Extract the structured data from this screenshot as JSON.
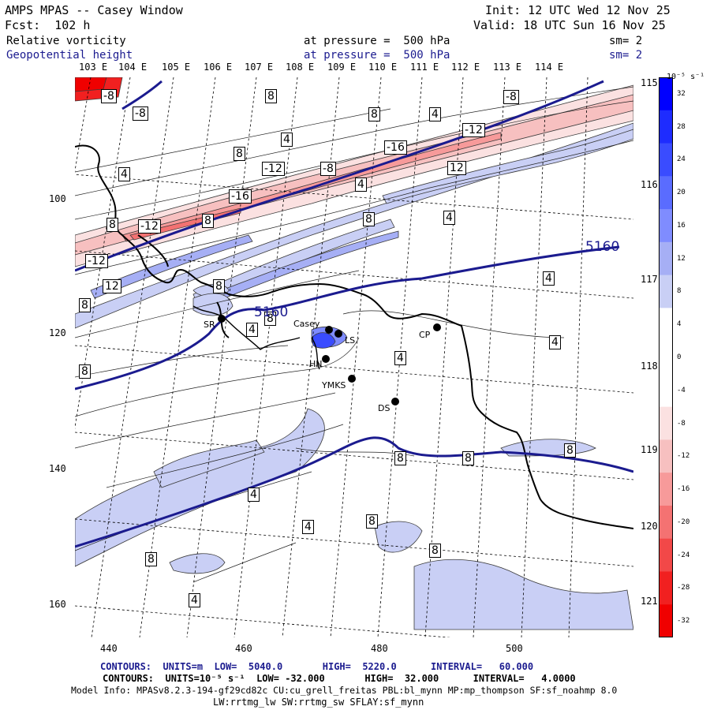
{
  "header": {
    "title": "AMPS MPAS -- Casey Window",
    "fcst": "Fcst:  102 h",
    "init": "Init: 12 UTC Wed 12 Nov 25",
    "valid": "Valid: 18 UTC Sun 16 Nov 25",
    "field1_name": "Relative vorticity",
    "field1_level": "at pressure =  500 hPa",
    "field1_sm": "sm= 2",
    "field2_name": "Geopotential height",
    "field2_level": "at pressure =  500 hPa",
    "field2_sm": "sm= 2"
  },
  "lon_labels": [
    "103 E",
    "104 E",
    "105 E",
    "106 E",
    "107 E",
    "108 E",
    "109 E",
    "110 E",
    "111 E",
    "112 E",
    "113 E",
    "114 E"
  ],
  "lat_labels": [
    "115 E",
    "116 E",
    "117 E",
    "118 E",
    "119 E",
    "120 E",
    "121 E"
  ],
  "x_ticks": [
    "440",
    "460",
    "480",
    "500"
  ],
  "y_ticks": [
    "100",
    "120",
    "140",
    "160"
  ],
  "colorbar": {
    "unit": "10⁻⁵ s⁻¹",
    "levels": [
      "32",
      "28",
      "24",
      "20",
      "16",
      "12",
      "8",
      "4",
      "0",
      "-4",
      "-8",
      "-12",
      "-16",
      "-20",
      "-24",
      "-28",
      "-32"
    ],
    "colors": [
      "#0000ff",
      "#1e2cff",
      "#3a4cff",
      "#5a6cff",
      "#7f8cff",
      "#a6aff5",
      "#c9cff5",
      "#ffffff",
      "#ffffff",
      "#ffffff",
      "#fbe1e1",
      "#f7c0c0",
      "#f79a9a",
      "#f47272",
      "#f24848",
      "#f12020",
      "#f00000"
    ]
  },
  "stations": [
    {
      "id": "SR",
      "label": "SR"
    },
    {
      "id": "casey",
      "label": "Casey"
    },
    {
      "id": "ls",
      "label": "LS"
    },
    {
      "id": "hn",
      "label": "HN"
    },
    {
      "id": "ymks",
      "label": "YMKS"
    },
    {
      "id": "ds",
      "label": "DS"
    },
    {
      "id": "cp",
      "label": "CP"
    }
  ],
  "height_labels": [
    "5160",
    "5160"
  ],
  "vort_labels": [
    "-8",
    "-8",
    "8",
    "8",
    "4",
    "8",
    "4",
    "8",
    "-8",
    "-12",
    "-12",
    "-16",
    "-12",
    "-16",
    "-8",
    "-12",
    "12",
    "4",
    "4",
    "4",
    "8",
    "8",
    "4",
    "8",
    "12",
    "4",
    "8",
    "4",
    "4",
    "8",
    "8",
    "8",
    "8",
    "8",
    "4",
    "8",
    "8",
    "4",
    "8",
    "4"
  ],
  "footer": {
    "line1": "CONTOURS:  UNITS=m  LOW=  5040.0       HIGH=  5220.0      INTERVAL=   60.000",
    "line2": "CONTOURS:  UNITS=10⁻⁵ s⁻¹  LOW= -32.000       HIGH=  32.000      INTERVAL=   4.0000",
    "line3": "Model Info: MPASv8.2.3-194-gf29cd82c CU:cu_grell_freitas PBL:bl_mynn MP:mp_thompson SF:sf_noahmp 8.0",
    "line4": "LW:rrtmg_lw SW:rrtmg_sw SFLAY:sf_mynn"
  }
}
